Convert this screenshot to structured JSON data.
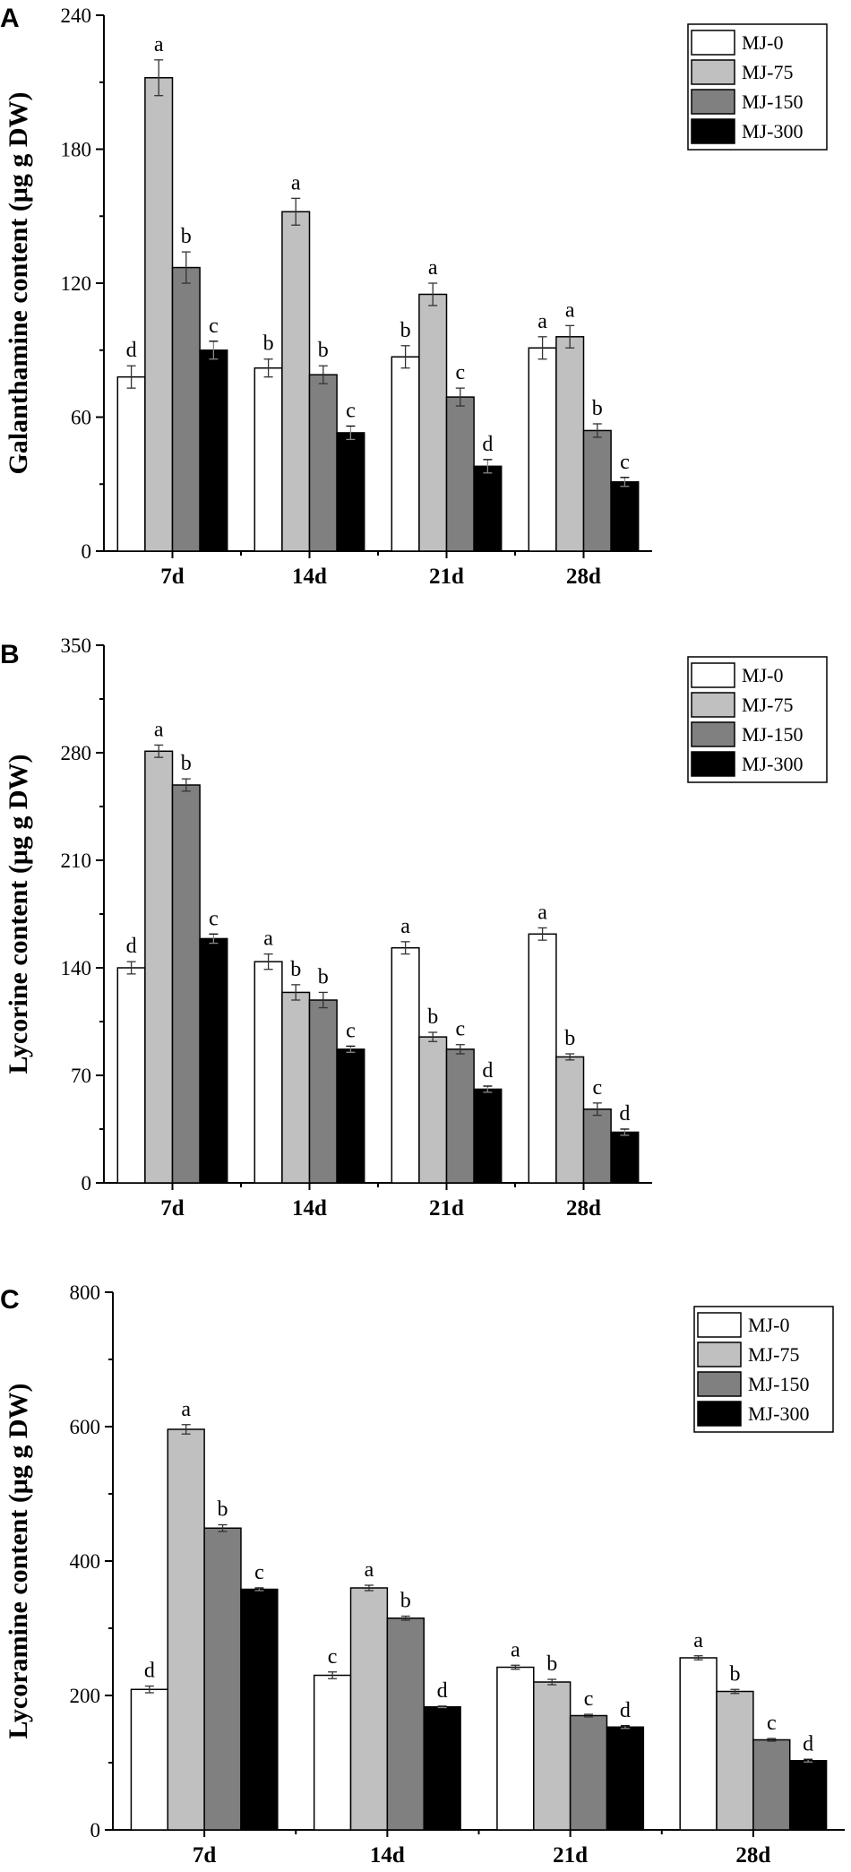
{
  "chart_data": [
    {
      "type": "bar",
      "panel": "A",
      "ylabel": "Galanthamine content (μg g DW)",
      "ylim": [
        0,
        240
      ],
      "yticks": [
        0,
        60,
        120,
        180,
        240
      ],
      "categories": [
        "7d",
        "14d",
        "21d",
        "28d"
      ],
      "series": [
        {
          "name": "MJ-0",
          "color": "#ffffff",
          "values": [
            78,
            82,
            87,
            91
          ],
          "errors": [
            5,
            4,
            5,
            5
          ],
          "labels": [
            "d",
            "b",
            "b",
            "a"
          ]
        },
        {
          "name": "MJ-75",
          "color": "#c0c0c0",
          "values": [
            212,
            152,
            115,
            96
          ],
          "errors": [
            8,
            6,
            5,
            5
          ],
          "labels": [
            "a",
            "a",
            "a",
            "a"
          ]
        },
        {
          "name": "MJ-150",
          "color": "#808080",
          "values": [
            127,
            79,
            69,
            54
          ],
          "errors": [
            7,
            4,
            4,
            3
          ],
          "labels": [
            "b",
            "b",
            "c",
            "b"
          ]
        },
        {
          "name": "MJ-300",
          "color": "#000000",
          "values": [
            90,
            53,
            38,
            31
          ],
          "errors": [
            4,
            3,
            3,
            2
          ],
          "labels": [
            "c",
            "c",
            "d",
            "c"
          ]
        }
      ]
    },
    {
      "type": "bar",
      "panel": "B",
      "ylabel": "Lycorine content (μg g DW)",
      "ylim": [
        0,
        350
      ],
      "yticks": [
        0,
        70,
        140,
        210,
        280,
        350
      ],
      "categories": [
        "7d",
        "14d",
        "21d",
        "28d"
      ],
      "series": [
        {
          "name": "MJ-0",
          "color": "#ffffff",
          "values": [
            140,
            144,
            153,
            162
          ],
          "errors": [
            4,
            5,
            4,
            4
          ],
          "labels": [
            "d",
            "a",
            "a",
            "a"
          ]
        },
        {
          "name": "MJ-75",
          "color": "#c0c0c0",
          "values": [
            281,
            124,
            95,
            82
          ],
          "errors": [
            4,
            5,
            3,
            2
          ],
          "labels": [
            "a",
            "b",
            "b",
            "b"
          ]
        },
        {
          "name": "MJ-150",
          "color": "#808080",
          "values": [
            259,
            119,
            87,
            48
          ],
          "errors": [
            4,
            5,
            3,
            4
          ],
          "labels": [
            "b",
            "b",
            "c",
            "c"
          ]
        },
        {
          "name": "MJ-300",
          "color": "#000000",
          "values": [
            159,
            87,
            61,
            33
          ],
          "errors": [
            3,
            2,
            2,
            2
          ],
          "labels": [
            "c",
            "c",
            "d",
            "d"
          ]
        }
      ]
    },
    {
      "type": "bar",
      "panel": "C",
      "ylabel": "Lycoramine content (μg g DW)",
      "ylim": [
        0,
        800
      ],
      "yticks": [
        0,
        200,
        400,
        600,
        800
      ],
      "categories": [
        "7d",
        "14d",
        "21d",
        "28d"
      ],
      "series": [
        {
          "name": "MJ-0",
          "color": "#ffffff",
          "values": [
            209,
            230,
            242,
            256
          ],
          "errors": [
            5,
            5,
            3,
            3
          ],
          "labels": [
            "d",
            "c",
            "a",
            "a"
          ]
        },
        {
          "name": "MJ-75",
          "color": "#c0c0c0",
          "values": [
            596,
            360,
            220,
            206
          ],
          "errors": [
            7,
            4,
            4,
            3
          ],
          "labels": [
            "a",
            "a",
            "b",
            "b"
          ]
        },
        {
          "name": "MJ-150",
          "color": "#808080",
          "values": [
            449,
            315,
            170,
            134
          ],
          "errors": [
            5,
            3,
            2,
            2
          ],
          "labels": [
            "b",
            "b",
            "c",
            "c"
          ]
        },
        {
          "name": "MJ-300",
          "color": "#000000",
          "values": [
            358,
            183,
            153,
            103
          ],
          "errors": [
            2,
            1,
            2,
            2
          ],
          "labels": [
            "c",
            "d",
            "d",
            "d"
          ]
        }
      ]
    }
  ]
}
